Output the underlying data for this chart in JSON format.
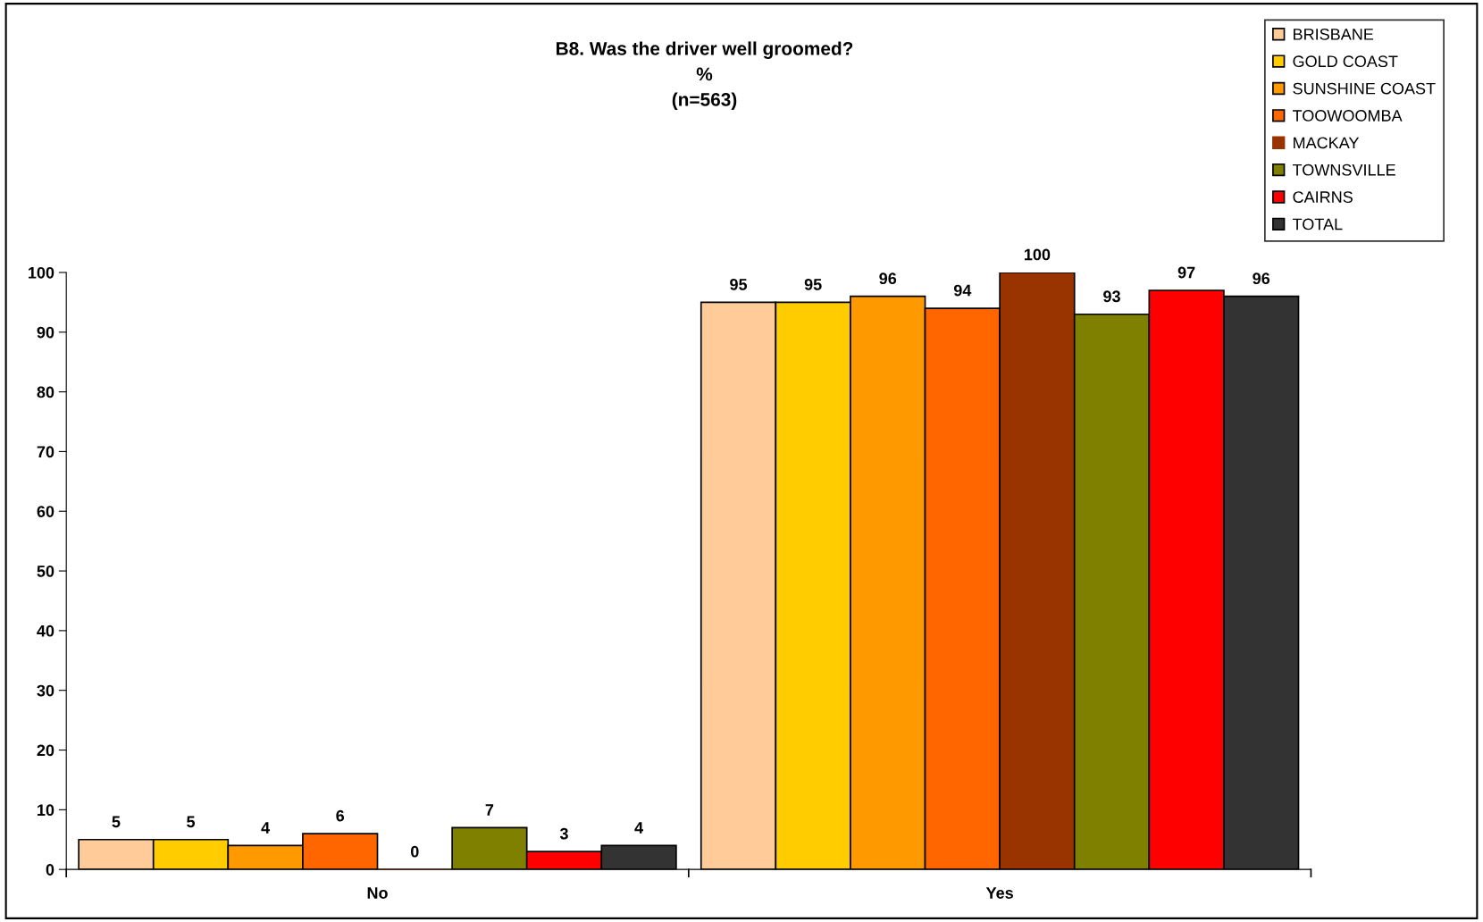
{
  "chart_data": {
    "type": "bar",
    "title": "B8. Was the driver well groomed?\n%\n(n=563)",
    "categories": [
      "No",
      "Yes"
    ],
    "series": [
      {
        "name": "BRISBANE",
        "color": "#ffcc99",
        "values": [
          5,
          95
        ]
      },
      {
        "name": "GOLD COAST",
        "color": "#ffcc00",
        "values": [
          5,
          95
        ]
      },
      {
        "name": "SUNSHINE COAST",
        "color": "#ff9900",
        "values": [
          4,
          96
        ]
      },
      {
        "name": "TOOWOOMBA",
        "color": "#ff6600",
        "values": [
          6,
          94
        ]
      },
      {
        "name": "MACKAY",
        "color": "#993300",
        "values": [
          0,
          100
        ]
      },
      {
        "name": "TOWNSVILLE",
        "color": "#808000",
        "values": [
          7,
          93
        ]
      },
      {
        "name": "CAIRNS",
        "color": "#ff0000",
        "values": [
          3,
          97
        ]
      },
      {
        "name": "TOTAL",
        "color": "#333333",
        "values": [
          4,
          96
        ]
      }
    ],
    "ylim": [
      0,
      100
    ],
    "yticks": [
      0,
      10,
      20,
      30,
      40,
      50,
      60,
      70,
      80,
      90,
      100
    ],
    "data_labels": true,
    "grid": false,
    "legend": "top right"
  }
}
